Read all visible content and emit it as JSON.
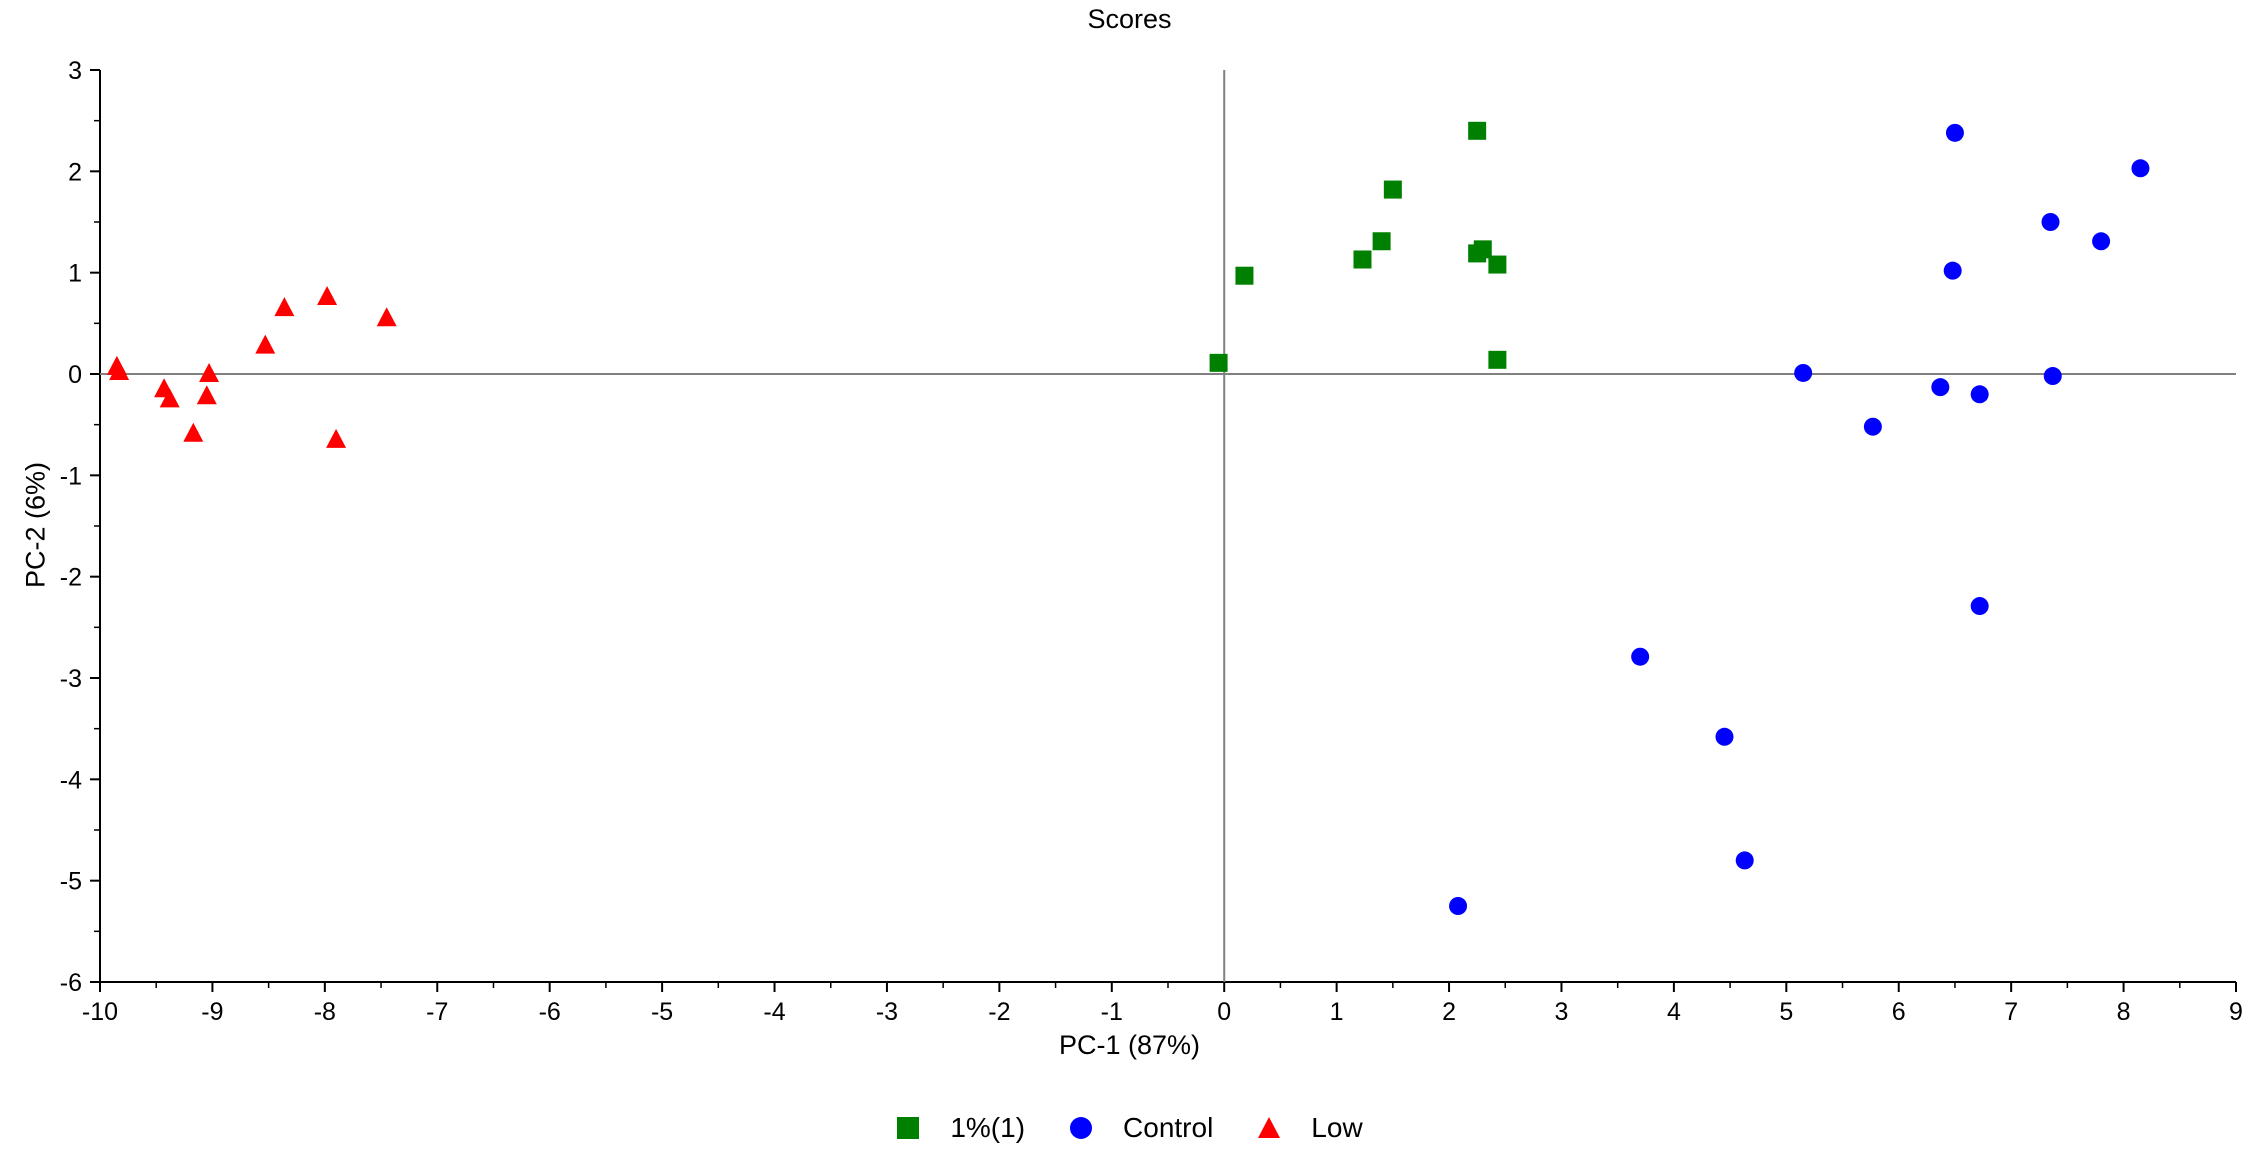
{
  "chart_data": {
    "type": "scatter",
    "title": "Scores",
    "xlabel": "PC-1 (87%)",
    "ylabel": "PC-2 (6%)",
    "xlim": [
      -10,
      9
    ],
    "ylim": [
      -6,
      3
    ],
    "xticks": [
      -10,
      -9,
      -8,
      -7,
      -6,
      -5,
      -4,
      -3,
      -2,
      -1,
      0,
      1,
      2,
      3,
      4,
      5,
      6,
      7,
      8,
      9
    ],
    "yticks": [
      -6,
      -5,
      -4,
      -3,
      -2,
      -1,
      0,
      1,
      2,
      3
    ],
    "grid": false,
    "zero_lines": true,
    "legend_position": "bottom-center",
    "series": [
      {
        "name": "1%(1)",
        "marker": "square",
        "color": "#008000",
        "points": [
          [
            2.25,
            2.4
          ],
          [
            1.5,
            1.82
          ],
          [
            1.4,
            1.31
          ],
          [
            1.23,
            1.13
          ],
          [
            0.18,
            0.97
          ],
          [
            2.25,
            1.19
          ],
          [
            2.3,
            1.23
          ],
          [
            2.43,
            1.08
          ],
          [
            -0.05,
            0.11
          ],
          [
            2.43,
            0.14
          ]
        ]
      },
      {
        "name": "Control",
        "marker": "circle",
        "color": "#0000ff",
        "points": [
          [
            6.5,
            2.38
          ],
          [
            8.15,
            2.03
          ],
          [
            7.35,
            1.5
          ],
          [
            7.8,
            1.31
          ],
          [
            6.48,
            1.02
          ],
          [
            5.15,
            0.01
          ],
          [
            7.37,
            -0.02
          ],
          [
            6.37,
            -0.13
          ],
          [
            6.72,
            -0.2
          ],
          [
            5.77,
            -0.52
          ],
          [
            6.72,
            -2.29
          ],
          [
            3.7,
            -2.79
          ],
          [
            4.45,
            -3.58
          ],
          [
            4.63,
            -4.8
          ],
          [
            2.08,
            -5.25
          ]
        ]
      },
      {
        "name": "Low",
        "marker": "triangle",
        "color": "#ff0000",
        "points": [
          [
            -9.85,
            0.07
          ],
          [
            -9.83,
            0.02
          ],
          [
            -9.43,
            -0.15
          ],
          [
            -9.38,
            -0.25
          ],
          [
            -9.03,
            0.0
          ],
          [
            -9.05,
            -0.22
          ],
          [
            -9.17,
            -0.59
          ],
          [
            -8.53,
            0.28
          ],
          [
            -8.36,
            0.65
          ],
          [
            -7.98,
            0.76
          ],
          [
            -7.45,
            0.55
          ],
          [
            -7.9,
            -0.65
          ]
        ]
      }
    ]
  }
}
